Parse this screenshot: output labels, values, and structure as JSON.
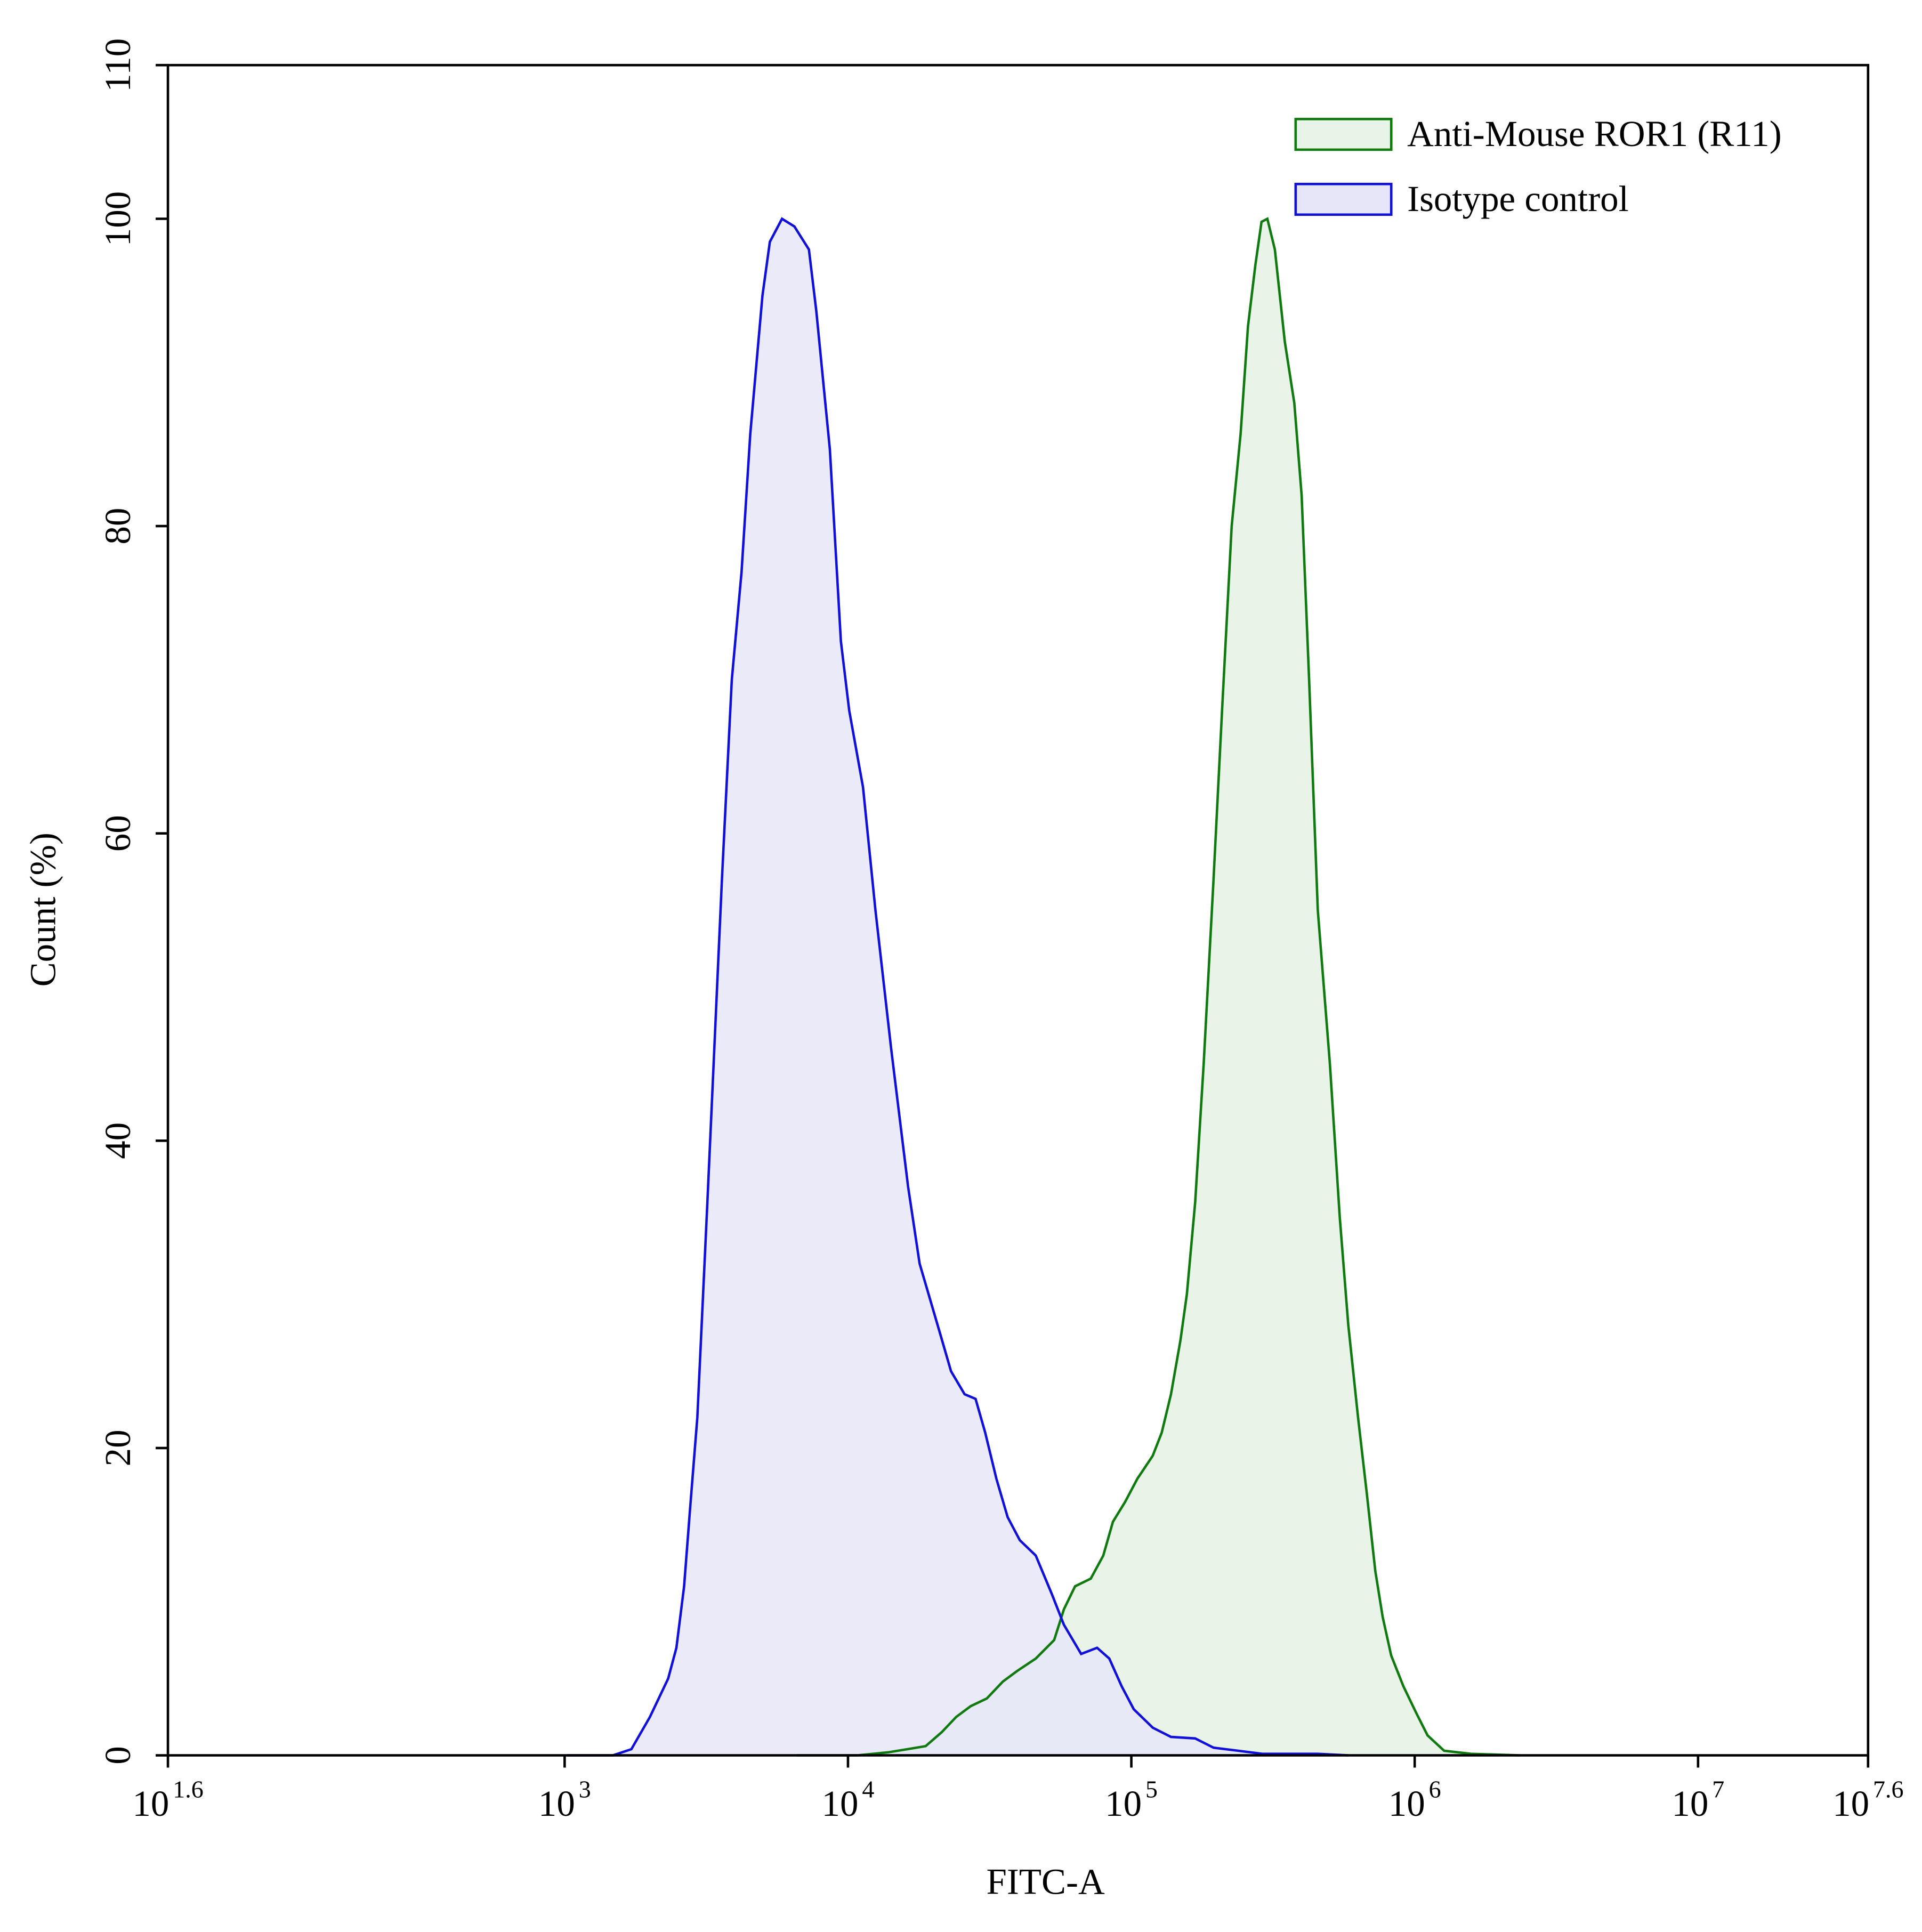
{
  "chart_data": {
    "type": "line",
    "x_label": "FITC-A",
    "y_label": "Count  (%)",
    "xscale": "log",
    "xlim": [
      39.81,
      39810717
    ],
    "ylim": [
      0,
      110
    ],
    "xticks": [
      {
        "value": 39.81,
        "label": "10",
        "exponent": "1.6"
      },
      {
        "value": 1000,
        "label": "10",
        "exponent": "3"
      },
      {
        "value": 10000,
        "label": "10",
        "exponent": "4"
      },
      {
        "value": 100000,
        "label": "10",
        "exponent": "5"
      },
      {
        "value": 1000000,
        "label": "10",
        "exponent": "6"
      },
      {
        "value": 10000000,
        "label": "10",
        "exponent": "7"
      },
      {
        "value": 39810717,
        "label": "10",
        "exponent": "7.6"
      }
    ],
    "yticks": [
      0,
      20,
      40,
      60,
      80,
      100,
      110
    ],
    "grid": false,
    "legend": "upper right",
    "series": [
      {
        "name": "Anti-Mouse ROR1 (R11)",
        "color": "#107a10",
        "fill": "#e9f4e9",
        "x": [
          6590,
          10800,
          13900,
          16200,
          18800,
          21400,
          24100,
          27100,
          30900,
          35200,
          39600,
          46000,
          53400,
          57800,
          63300,
          71900,
          79600,
          86100,
          95100,
          105000,
          119000,
          128000,
          138000,
          149000,
          157000,
          168000,
          180000,
          195000,
          209000,
          226000,
          243000,
          258000,
          274000,
          288000,
          302000,
          321000,
          348000,
          376000,
          399000,
          424000,
          455000,
          502000,
          544000,
          583000,
          631000,
          678000,
          726000,
          771000,
          826000,
          912000,
          1010000,
          1110000,
          1270000,
          1580000,
          2350000
        ],
        "values": [
          0,
          0,
          0.2,
          0.4,
          0.6,
          1.5,
          2.5,
          3.2,
          3.7,
          4.8,
          5.5,
          6.3,
          7.5,
          9.5,
          11,
          11.5,
          13,
          15.2,
          16.5,
          18,
          19.5,
          21,
          23.5,
          27,
          30,
          36,
          45,
          57,
          68,
          80,
          86,
          93,
          97,
          99.8,
          100,
          98,
          92,
          88,
          82,
          70,
          55,
          45,
          35,
          28,
          22,
          17,
          12,
          9,
          6.5,
          4.5,
          2.8,
          1.3,
          0.3,
          0.1,
          0
        ]
      },
      {
        "name": "Isotype control",
        "color": "#1010d8",
        "fill": "#e6e6f8",
        "x": [
          1020,
          1480,
          1720,
          2000,
          2320,
          2480,
          2640,
          2770,
          2940,
          3190,
          3590,
          3890,
          4210,
          4520,
          4990,
          5300,
          5850,
          6470,
          7280,
          7730,
          8630,
          9440,
          10100,
          11300,
          12500,
          14200,
          16300,
          17900,
          21100,
          23100,
          25800,
          28200,
          30500,
          33400,
          36600,
          40400,
          46000,
          52400,
          57800,
          66500,
          75700,
          83600,
          92400,
          102000,
          119000,
          138000,
          168000,
          195000,
          238000,
          290000,
          455000,
          583000
        ],
        "values": [
          0,
          0,
          0.4,
          2.5,
          5,
          7,
          11,
          16,
          22,
          36,
          57,
          70,
          77,
          86,
          95,
          98.5,
          100,
          99.5,
          98,
          94,
          85,
          72.5,
          68,
          63,
          55,
          46,
          37,
          32,
          27.5,
          25,
          23.5,
          23.2,
          21,
          18,
          15.5,
          14,
          13,
          10.5,
          8.5,
          6.6,
          7,
          6.3,
          4.5,
          3,
          1.8,
          1.2,
          1.1,
          0.5,
          0.3,
          0.1,
          0.1,
          0
        ]
      }
    ]
  }
}
